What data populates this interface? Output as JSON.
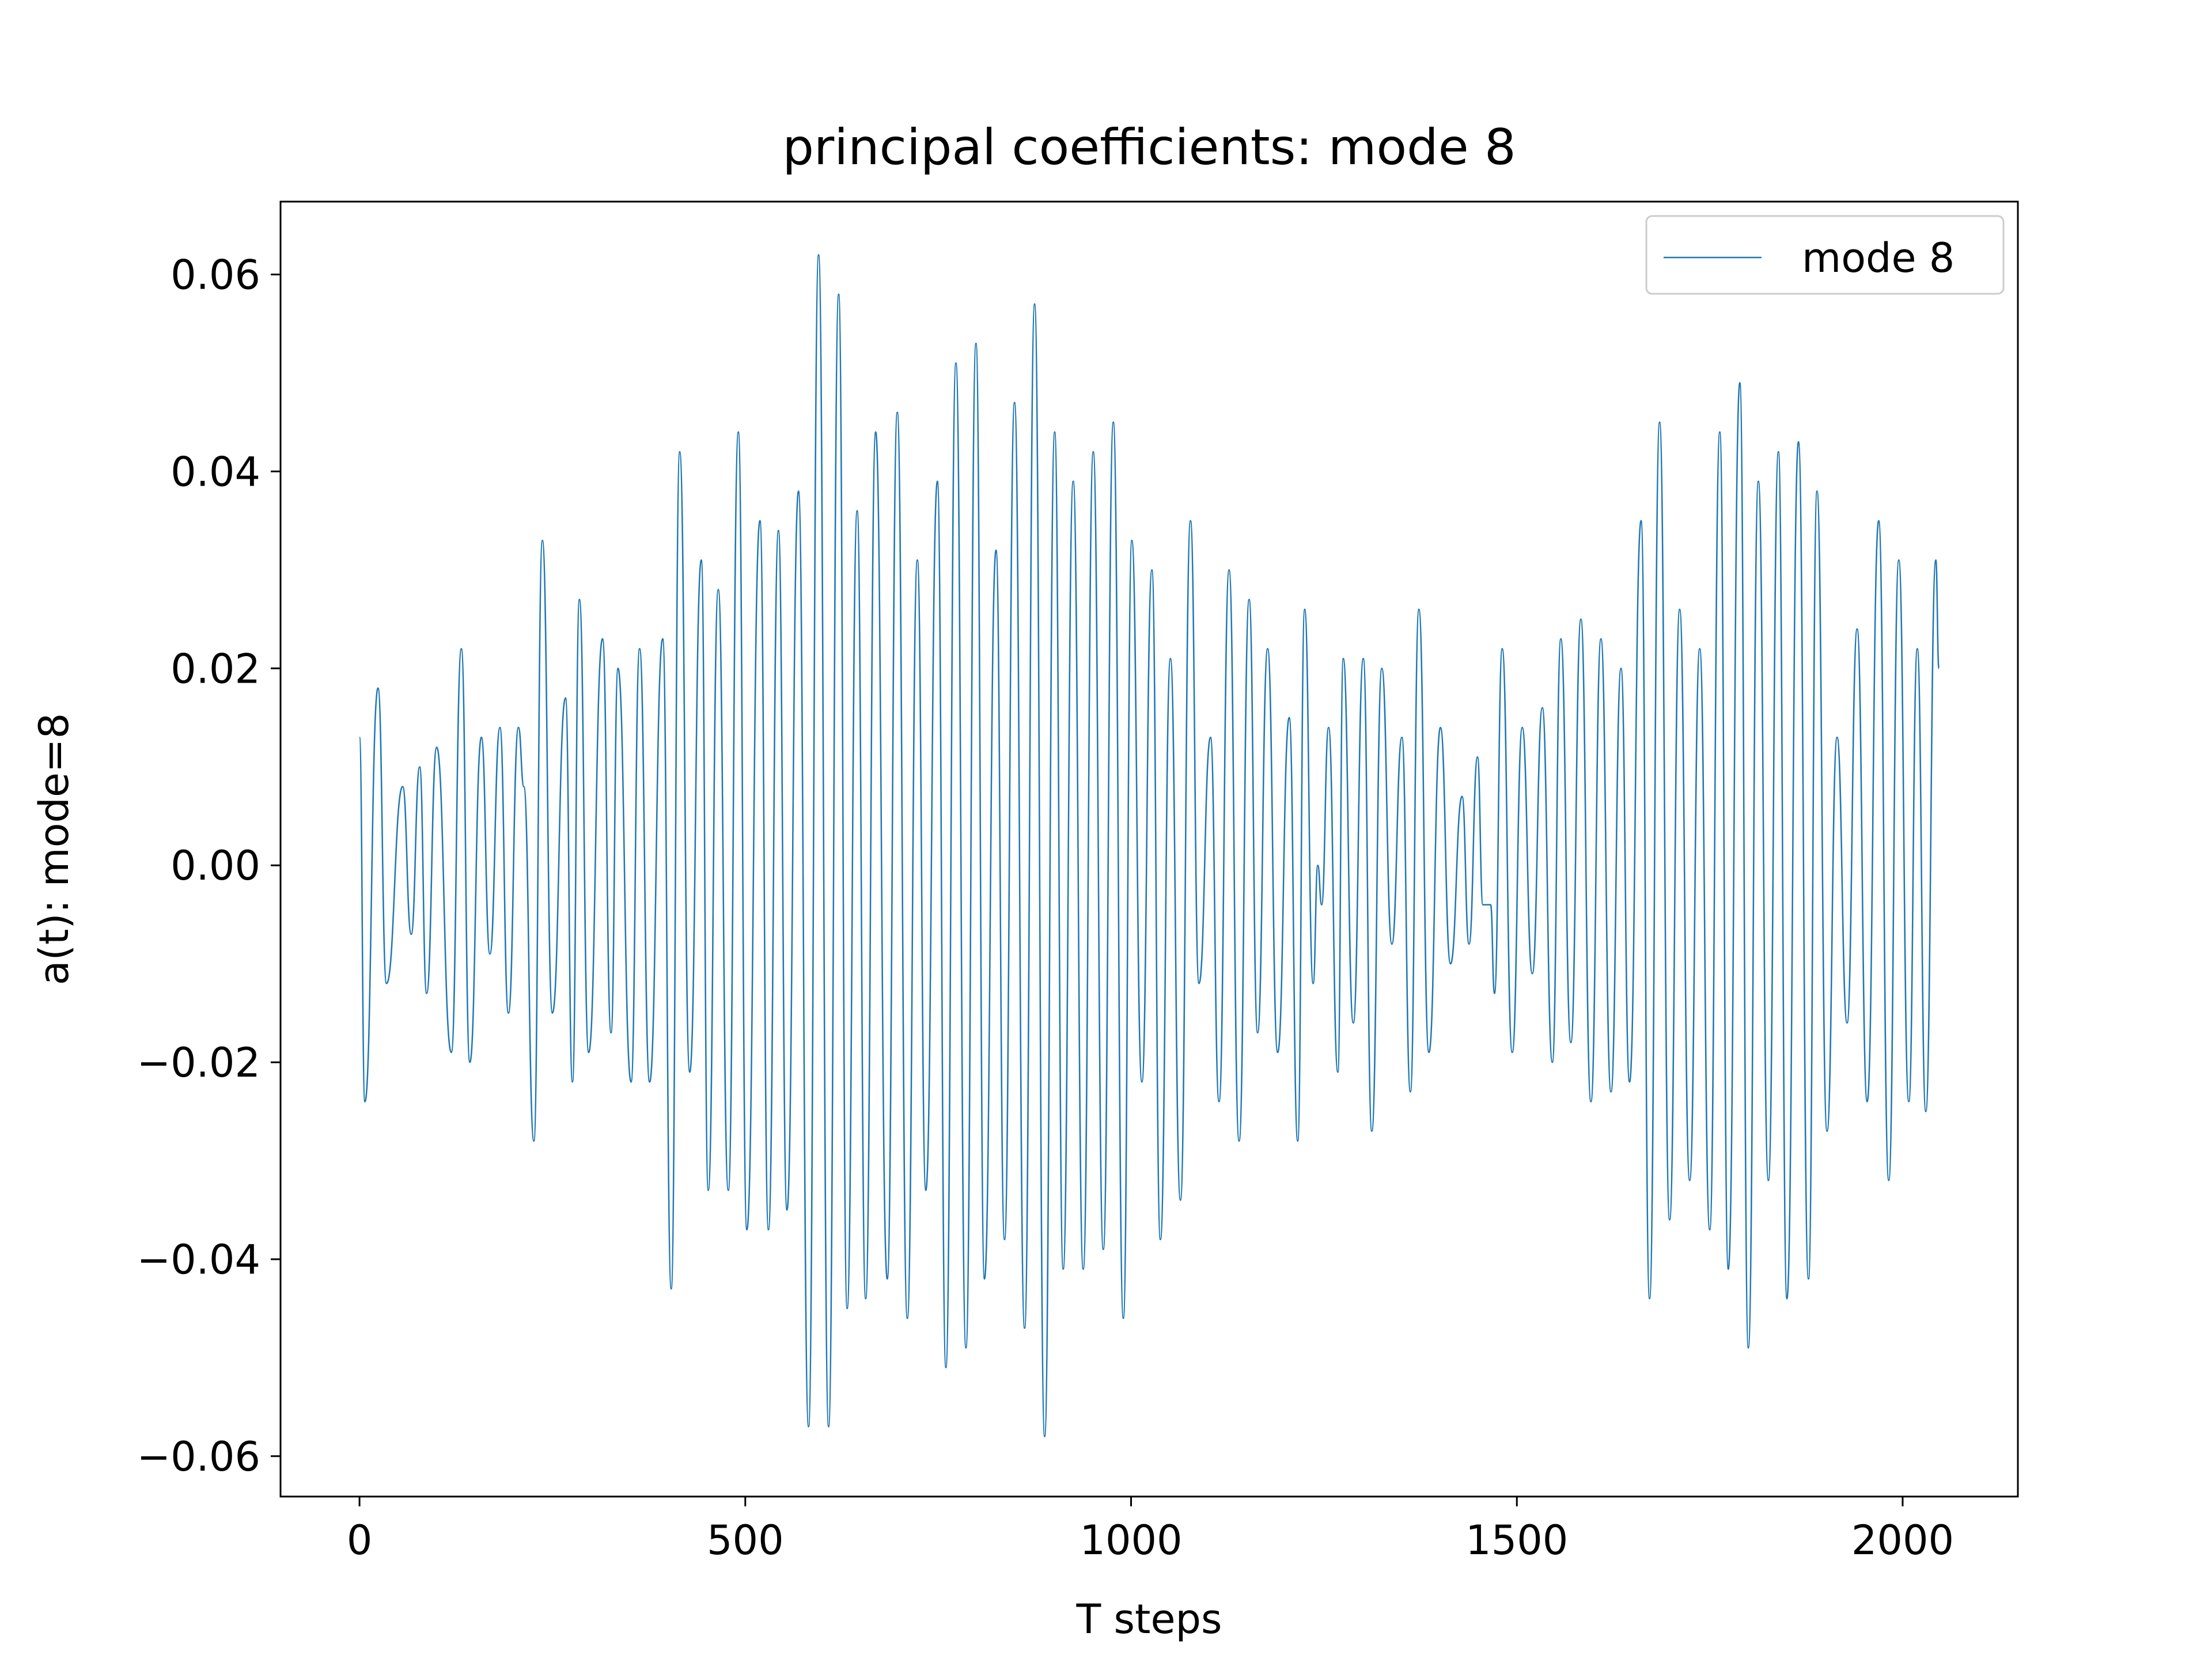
{
  "chart_data": {
    "type": "line",
    "title": "principal coefficients: mode 8",
    "xlabel": "T steps",
    "ylabel": "a(t): mode=8",
    "xlim": [
      -102.35,
      2149.35
    ],
    "ylim": [
      -0.0641,
      0.0674
    ],
    "xticks": [
      0,
      500,
      1000,
      1500,
      2000
    ],
    "yticks": [
      {
        "value": -0.06,
        "label": "−0.06"
      },
      {
        "value": -0.04,
        "label": "−0.04"
      },
      {
        "value": -0.02,
        "label": "−0.02"
      },
      {
        "value": 0,
        "label": "0.00"
      },
      {
        "value": 0.02,
        "label": "0.02"
      },
      {
        "value": 0.04,
        "label": "0.04"
      },
      {
        "value": 0.06,
        "label": "0.06"
      }
    ],
    "grid": false,
    "legend": "upper right",
    "x": [
      0,
      7,
      24,
      35,
      56,
      67,
      78,
      87,
      100,
      119,
      132,
      143,
      158,
      169,
      182,
      193,
      206,
      213,
      226,
      237,
      250,
      267,
      276,
      285,
      297,
      315,
      326,
      335,
      352,
      363,
      376,
      393,
      404,
      415,
      428,
      443,
      452,
      465,
      478,
      491,
      502,
      519,
      530,
      543,
      554,
      569,
      582,
      595,
      608,
      621,
      632,
      645,
      656,
      669,
      684,
      697,
      710,
      723,
      734,
      749,
      760,
      773,
      786,
      799,
      810,
      825,
      836,
      849,
      862,
      875,
      888,
      901,
      912,
      925,
      938,
      951,
      964,
      977,
      990,
      1001,
      1014,
      1027,
      1038,
      1051,
      1064,
      1077,
      1088,
      1103,
      1114,
      1127,
      1140,
      1153,
      1164,
      1177,
      1190,
      1205,
      1216,
      1225,
      1236,
      1242,
      1247,
      1256,
      1268,
      1275,
      1288,
      1301,
      1312,
      1325,
      1338,
      1351,
      1362,
      1373,
      1386,
      1401,
      1414,
      1429,
      1438,
      1449,
      1456,
      1466,
      1471,
      1481,
      1494,
      1507,
      1520,
      1533,
      1546,
      1557,
      1570,
      1583,
      1596,
      1609,
      1622,
      1635,
      1646,
      1661,
      1672,
      1685,
      1698,
      1711,
      1724,
      1737,
      1750,
      1763,
      1774,
      1789,
      1800,
      1813,
      1826,
      1839,
      1850,
      1865,
      1878,
      1889,
      1902,
      1915,
      1928,
      1941,
      1954,
      1969,
      1982,
      1995,
      2008,
      2019,
      2030,
      2043,
      2047
    ],
    "series": [
      {
        "name": "mode 8",
        "color": "#1f77b4",
        "values": [
          0.013,
          -0.024,
          0.018,
          -0.012,
          0.008,
          -0.007,
          0.01,
          -0.013,
          0.012,
          -0.019,
          0.022,
          -0.02,
          0.013,
          -0.009,
          0.014,
          -0.015,
          0.014,
          0.008,
          -0.028,
          0.033,
          -0.015,
          0.017,
          -0.022,
          0.027,
          -0.019,
          0.023,
          -0.017,
          0.02,
          -0.022,
          0.022,
          -0.022,
          0.023,
          -0.043,
          0.042,
          -0.021,
          0.031,
          -0.033,
          0.028,
          -0.033,
          0.044,
          -0.037,
          0.035,
          -0.037,
          0.034,
          -0.035,
          0.038,
          -0.057,
          0.062,
          -0.057,
          0.058,
          -0.045,
          0.036,
          -0.044,
          0.044,
          -0.042,
          0.046,
          -0.046,
          0.031,
          -0.033,
          0.039,
          -0.051,
          0.051,
          -0.049,
          0.053,
          -0.042,
          0.032,
          -0.038,
          0.047,
          -0.047,
          0.057,
          -0.058,
          0.044,
          -0.041,
          0.039,
          -0.041,
          0.042,
          -0.039,
          0.045,
          -0.046,
          0.033,
          -0.022,
          0.03,
          -0.038,
          0.021,
          -0.034,
          0.035,
          -0.012,
          0.013,
          -0.024,
          0.03,
          -0.028,
          0.027,
          -0.017,
          0.022,
          -0.019,
          0.015,
          -0.028,
          0.026,
          -0.012,
          0.0,
          -0.004,
          0.014,
          -0.021,
          0.021,
          -0.016,
          0.021,
          -0.027,
          0.02,
          -0.008,
          0.013,
          -0.023,
          0.026,
          -0.019,
          0.014,
          -0.01,
          0.007,
          -0.008,
          0.011,
          -0.004,
          -0.004,
          -0.013,
          0.022,
          -0.019,
          0.014,
          -0.011,
          0.016,
          -0.02,
          0.023,
          -0.018,
          0.025,
          -0.024,
          0.023,
          -0.023,
          0.02,
          -0.022,
          0.035,
          -0.044,
          0.045,
          -0.036,
          0.026,
          -0.032,
          0.022,
          -0.037,
          0.044,
          -0.041,
          0.049,
          -0.049,
          0.039,
          -0.032,
          0.042,
          -0.044,
          0.043,
          -0.042,
          0.038,
          -0.027,
          0.013,
          -0.016,
          0.024,
          -0.024,
          0.035,
          -0.032,
          0.031,
          -0.024,
          0.022,
          -0.025,
          0.031,
          0.02
        ]
      }
    ]
  }
}
